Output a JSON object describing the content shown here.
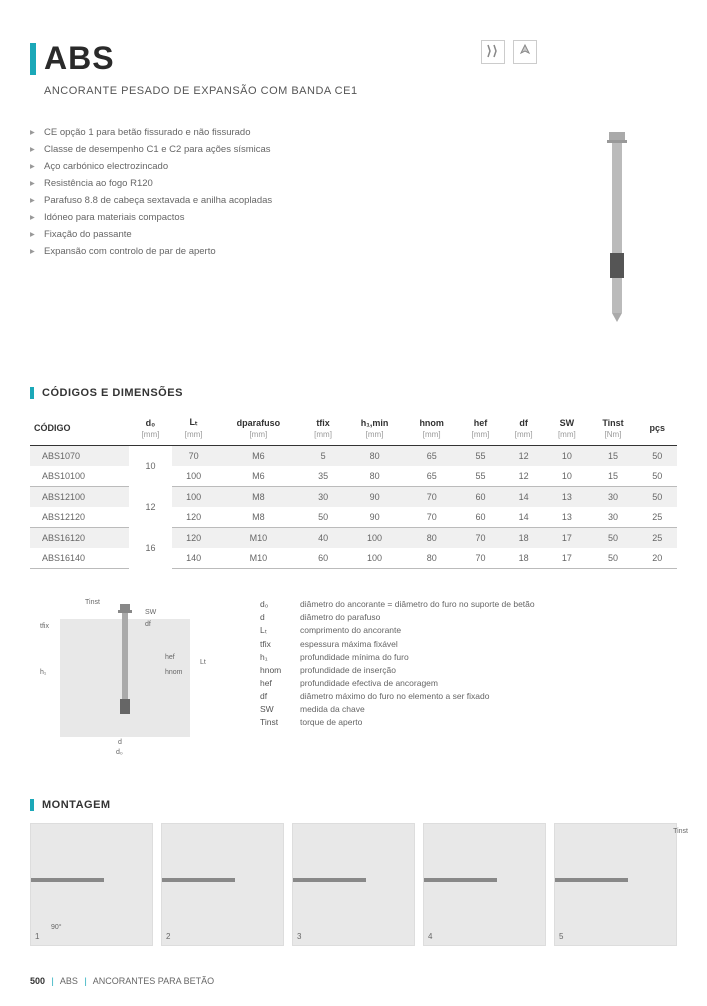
{
  "header": {
    "title": "ABS",
    "subtitle": "ANCORANTE PESADO DE EXPANSÃO COM BANDA CE1"
  },
  "bullets": [
    "CE opção 1 para betão fissurado e não fissurado",
    "Classe de desempenho C1 e C2 para ações sísmicas",
    "Aço carbónico electrozincado",
    "Resistência ao fogo R120",
    "Parafuso 8.8 de cabeça sextavada e anilha acopladas",
    "Idóneo para materiais compactos",
    "Fixação do passante",
    "Expansão com controlo de par de aperto"
  ],
  "section_codes": "CÓDIGOS E DIMENSÕES",
  "section_montage": "MONTAGEM",
  "table": {
    "columns": [
      {
        "label": "CÓDIGO",
        "unit": ""
      },
      {
        "label": "d₀",
        "unit": "[mm]"
      },
      {
        "label": "Lₜ",
        "unit": "[mm]"
      },
      {
        "label": "dparafuso",
        "unit": "[mm]"
      },
      {
        "label": "tfix",
        "unit": "[mm]"
      },
      {
        "label": "h₁,min",
        "unit": "[mm]"
      },
      {
        "label": "hnom",
        "unit": "[mm]"
      },
      {
        "label": "hef",
        "unit": "[mm]"
      },
      {
        "label": "df",
        "unit": "[mm]"
      },
      {
        "label": "SW",
        "unit": "[mm]"
      },
      {
        "label": "Tinst",
        "unit": "[Nm]"
      },
      {
        "label": "pçs",
        "unit": ""
      }
    ],
    "groups": [
      {
        "d0": "10",
        "rows": [
          [
            "ABS1070",
            "70",
            "M6",
            "5",
            "80",
            "65",
            "55",
            "12",
            "10",
            "15",
            "50"
          ],
          [
            "ABS10100",
            "100",
            "M6",
            "35",
            "80",
            "65",
            "55",
            "12",
            "10",
            "15",
            "50"
          ]
        ]
      },
      {
        "d0": "12",
        "rows": [
          [
            "ABS12100",
            "100",
            "M8",
            "30",
            "90",
            "70",
            "60",
            "14",
            "13",
            "30",
            "50"
          ],
          [
            "ABS12120",
            "120",
            "M8",
            "50",
            "90",
            "70",
            "60",
            "14",
            "13",
            "30",
            "25"
          ]
        ]
      },
      {
        "d0": "16",
        "rows": [
          [
            "ABS16120",
            "120",
            "M10",
            "40",
            "100",
            "80",
            "70",
            "18",
            "17",
            "50",
            "25"
          ],
          [
            "ABS16140",
            "140",
            "M10",
            "60",
            "100",
            "80",
            "70",
            "18",
            "17",
            "50",
            "20"
          ]
        ]
      }
    ]
  },
  "diagram_labels": [
    "Tinst",
    "tfix",
    "h₁",
    "SW",
    "df",
    "hef",
    "hnom",
    "Lt",
    "d",
    "d₀"
  ],
  "legend": [
    {
      "sym": "d₀",
      "desc": "diâmetro do ancorante = diâmetro do furo no suporte de betão"
    },
    {
      "sym": "d",
      "desc": "diâmetro do parafuso"
    },
    {
      "sym": "Lₜ",
      "desc": "comprimento do ancorante"
    },
    {
      "sym": "tfix",
      "desc": "espessura máxima fixável"
    },
    {
      "sym": "h₁",
      "desc": "profundidade mínima do furo"
    },
    {
      "sym": "hnom",
      "desc": "profundidade de inserção"
    },
    {
      "sym": "hef",
      "desc": "profundidade efectiva de ancoragem"
    },
    {
      "sym": "df",
      "desc": "diâmetro máximo do furo no elemento a ser fixado"
    },
    {
      "sym": "SW",
      "desc": "medida da chave"
    },
    {
      "sym": "Tinst",
      "desc": "torque de aperto"
    }
  ],
  "montage": {
    "steps": [
      "1",
      "2",
      "3",
      "4",
      "5"
    ],
    "angle": "90°",
    "t_label": "Tinst"
  },
  "footer": {
    "page": "500",
    "code": "ABS",
    "category": "ANCORANTES PARA BETÃO"
  }
}
